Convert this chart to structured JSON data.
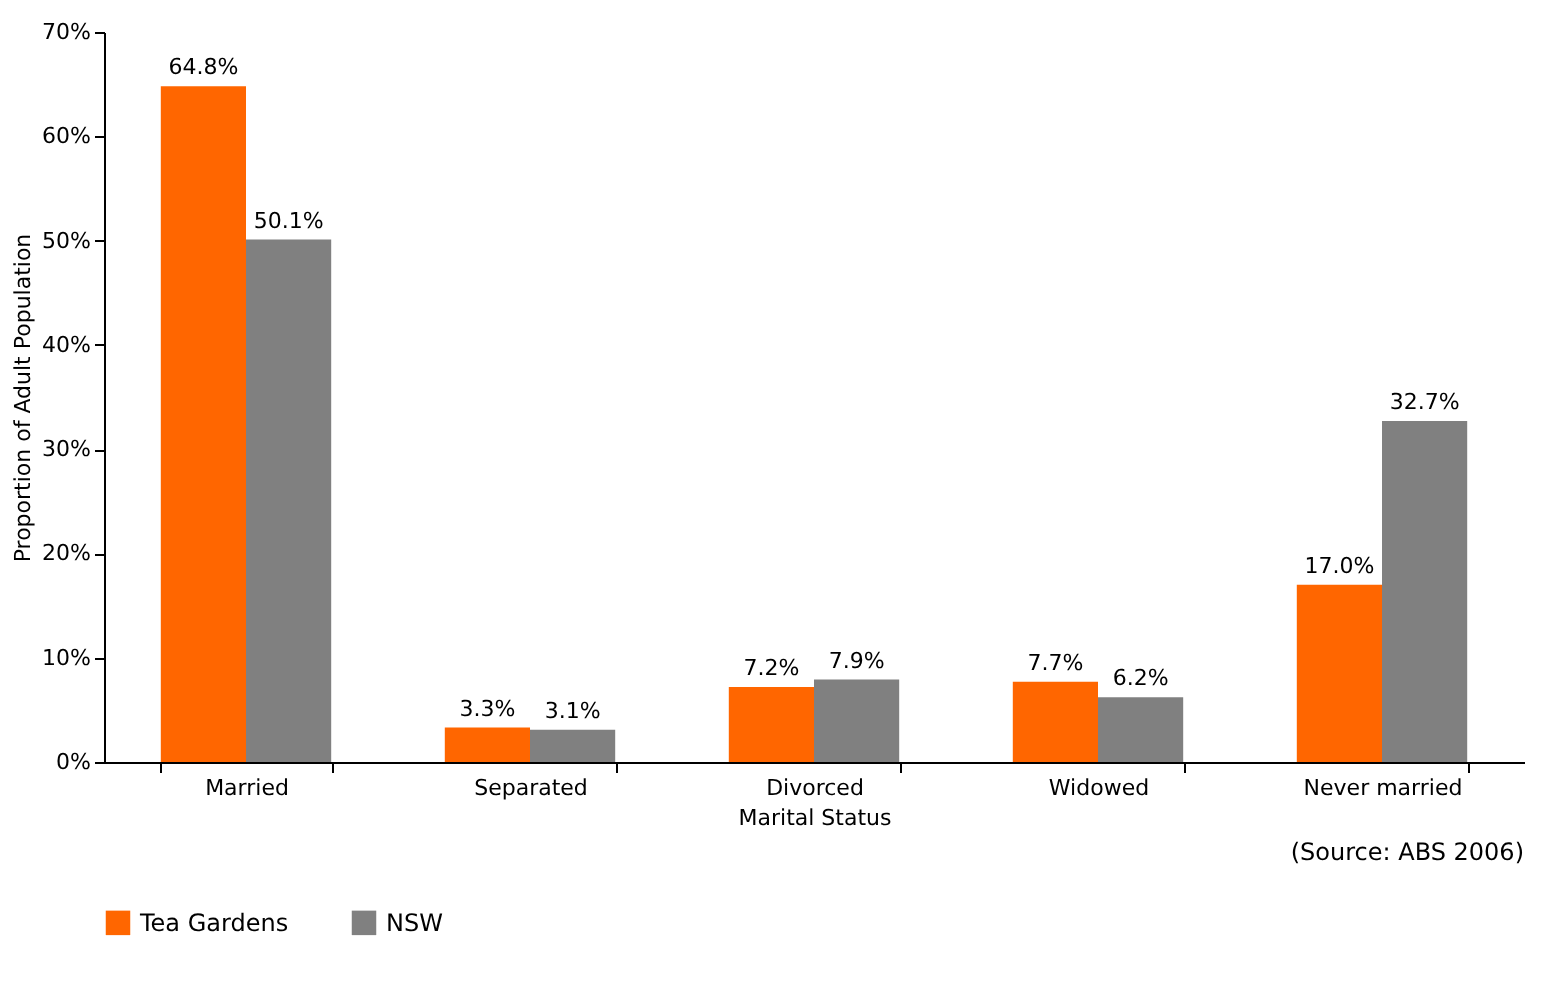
{
  "chart_data": {
    "type": "bar",
    "xlabel": "Marital Status",
    "ylabel": "Proportion of Adult Population",
    "categories": [
      "Married",
      "Separated",
      "Divorced",
      "Widowed",
      "Never married"
    ],
    "series": [
      {
        "name": "Tea Gardens",
        "color": "#ff6600",
        "values": [
          64.8,
          3.3,
          7.2,
          7.7,
          17.0
        ],
        "value_labels": [
          "64.8%",
          "3.3%",
          "7.2%",
          "7.7%",
          "17.0%"
        ]
      },
      {
        "name": "NSW",
        "color": "#808080",
        "values": [
          50.1,
          3.1,
          7.9,
          6.2,
          32.7
        ],
        "value_labels": [
          "50.1%",
          "3.1%",
          "7.9%",
          "6.2%",
          "32.7%"
        ]
      }
    ],
    "ylim": [
      0,
      70
    ],
    "yticks": [
      {
        "value": 0,
        "label": "0%"
      },
      {
        "value": 10,
        "label": "10%"
      },
      {
        "value": 20,
        "label": "20%"
      },
      {
        "value": 30,
        "label": "30%"
      },
      {
        "value": 40,
        "label": "40%"
      },
      {
        "value": 50,
        "label": "50%"
      },
      {
        "value": 60,
        "label": "60%"
      },
      {
        "value": 70,
        "label": "70%"
      }
    ],
    "grid": false,
    "legend": "bottom",
    "annotations": [
      "(Source: ABS 2006)"
    ]
  }
}
